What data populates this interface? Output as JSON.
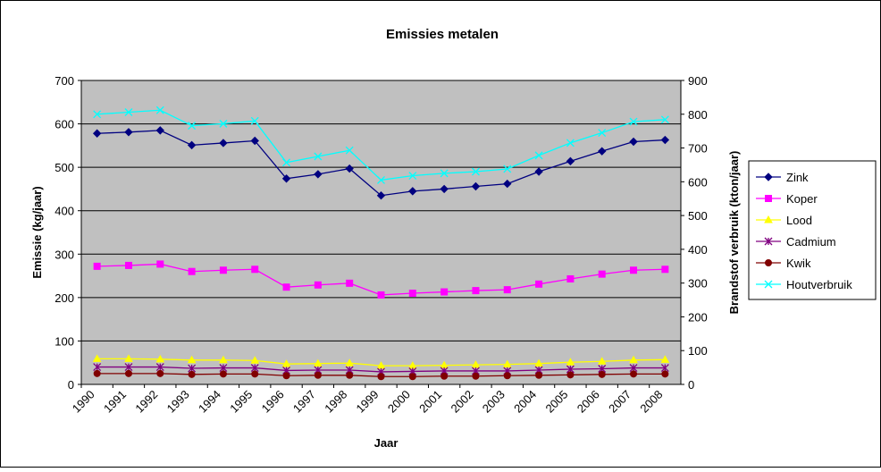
{
  "chart_data": {
    "type": "line",
    "title": "Emissies metalen",
    "x_label": "Jaar",
    "y_label": "Emissie (kg/jaar)",
    "y2_label": "Brandstof verbruik (kton/jaar)",
    "categories": [
      "1990",
      "1991",
      "1992",
      "1993",
      "1994",
      "1995",
      "1996",
      "1997",
      "1998",
      "1999",
      "2000",
      "2001",
      "2002",
      "2003",
      "2004",
      "2005",
      "2006",
      "2007",
      "2008"
    ],
    "ylim": [
      0,
      700
    ],
    "yticks": [
      0,
      100,
      200,
      300,
      400,
      500,
      600,
      700
    ],
    "y2lim": [
      0,
      900
    ],
    "y2ticks": [
      0,
      100,
      200,
      300,
      400,
      500,
      600,
      700,
      800,
      900
    ],
    "grid": true,
    "legend": "right",
    "background": "#c0c0c0",
    "series": [
      {
        "name": "Zink",
        "color": "#000080",
        "marker": "diamond",
        "values": [
          578,
          581,
          585,
          551,
          556,
          561,
          474,
          484,
          497,
          435,
          445,
          450,
          456,
          462,
          490,
          514,
          537,
          559,
          563
        ]
      },
      {
        "name": "Koper",
        "color": "#ff00ff",
        "marker": "square",
        "values": [
          272,
          274,
          277,
          260,
          263,
          265,
          224,
          229,
          233,
          206,
          210,
          213,
          216,
          218,
          231,
          243,
          254,
          263,
          265
        ]
      },
      {
        "name": "Lood",
        "color": "#ffff00",
        "marker": "triangle",
        "values": [
          59,
          59,
          58,
          56,
          56,
          55,
          47,
          48,
          49,
          43,
          43,
          44,
          45,
          46,
          48,
          51,
          53,
          56,
          57
        ]
      },
      {
        "name": "Cadmium",
        "color": "#800080",
        "marker": "star",
        "values": [
          40,
          40,
          40,
          37,
          38,
          38,
          32,
          33,
          33,
          29,
          30,
          31,
          31,
          31,
          33,
          35,
          36,
          38,
          38
        ]
      },
      {
        "name": "Kwik",
        "color": "#800000",
        "marker": "circle",
        "values": [
          25,
          25,
          25,
          23,
          24,
          24,
          20,
          21,
          21,
          18,
          18,
          19,
          19,
          20,
          21,
          22,
          23,
          24,
          24
        ]
      },
      {
        "name": "Houtverbruik",
        "color": "#00ffff",
        "marker": "x",
        "axis": "y2",
        "values": [
          800,
          806,
          812,
          766,
          772,
          780,
          657,
          675,
          693,
          605,
          618,
          625,
          630,
          638,
          678,
          715,
          745,
          778,
          784
        ]
      }
    ]
  }
}
